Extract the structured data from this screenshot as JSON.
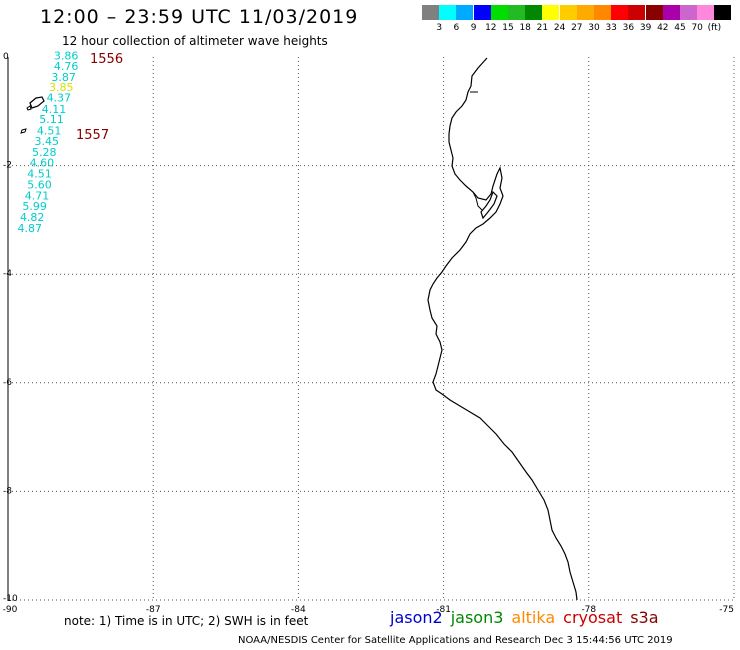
{
  "header": {
    "title": "12:00 – 23:59 UTC 11/03/2019",
    "subtitle": "12 hour collection of altimeter wave heights"
  },
  "color_scale": {
    "colors": [
      "#808080",
      "#00ffff",
      "#00aaff",
      "#0000ff",
      "#00dd00",
      "#22bb22",
      "#008800",
      "#ffff00",
      "#ffcc00",
      "#ffaa00",
      "#ff8800",
      "#ff0000",
      "#cc0000",
      "#880000",
      "#aa00aa",
      "#cc66cc",
      "#ff88dd",
      "#000000"
    ],
    "labels": [
      "3",
      "6",
      "9",
      "12",
      "15",
      "18",
      "21",
      "24",
      "27",
      "30",
      "33",
      "36",
      "39",
      "42",
      "45",
      "70",
      "(ft)"
    ]
  },
  "axes": {
    "x_ticks": [
      "-90",
      "-87",
      "-84",
      "-81",
      "-78",
      "-75"
    ],
    "x_values": [
      -90,
      -87,
      -84,
      -81,
      -78,
      -75
    ],
    "y_ticks": [
      "0",
      "-2",
      "-4",
      "-6",
      "-8",
      "-10"
    ],
    "y_values": [
      0,
      -2,
      -4,
      -6,
      -8,
      -10
    ],
    "xlim": [
      -90,
      -75
    ],
    "ylim": [
      -10,
      0
    ],
    "grid": true
  },
  "track": {
    "time_labels": [
      "1556",
      "1557"
    ],
    "time_label_color": "#880000",
    "values": [
      {
        "text": "3.86",
        "color": "#00cccc",
        "lon": -88.8,
        "lat": -0.05
      },
      {
        "text": "4.76",
        "color": "#00cccc",
        "lon": -88.8,
        "lat": -0.24
      },
      {
        "text": "3.87",
        "color": "#00cccc",
        "lon": -88.85,
        "lat": -0.44
      },
      {
        "text": "3.85",
        "color": "#dddd00",
        "lon": -88.9,
        "lat": -0.63
      },
      {
        "text": "4.37",
        "color": "#00cccc",
        "lon": -88.95,
        "lat": -0.82
      },
      {
        "text": "4.11",
        "color": "#00cccc",
        "lon": -89.05,
        "lat": -1.03
      },
      {
        "text": "5.11",
        "color": "#00cccc",
        "lon": -89.1,
        "lat": -1.22
      },
      {
        "text": "4.51",
        "color": "#00cccc",
        "lon": -89.15,
        "lat": -1.43
      },
      {
        "text": "3.45",
        "color": "#00cccc",
        "lon": -89.2,
        "lat": -1.62
      },
      {
        "text": "5.28",
        "color": "#00cccc",
        "lon": -89.25,
        "lat": -1.82
      },
      {
        "text": "4.60",
        "color": "#00cccc",
        "lon": -89.3,
        "lat": -2.02
      },
      {
        "text": "4.51",
        "color": "#00cccc",
        "lon": -89.35,
        "lat": -2.22
      },
      {
        "text": "5.60",
        "color": "#00cccc",
        "lon": -89.35,
        "lat": -2.42
      },
      {
        "text": "4.71",
        "color": "#00cccc",
        "lon": -89.4,
        "lat": -2.62
      },
      {
        "text": "5.99",
        "color": "#00cccc",
        "lon": -89.45,
        "lat": -2.82
      },
      {
        "text": "4.82",
        "color": "#00cccc",
        "lon": -89.5,
        "lat": -3.02
      },
      {
        "text": "4.87",
        "color": "#00cccc",
        "lon": -89.55,
        "lat": -3.22
      }
    ]
  },
  "footer": {
    "note": "note: 1) Time is in UTC; 2) SWH is in feet",
    "satellites": [
      {
        "name": "jason2",
        "color": "#0000cc"
      },
      {
        "name": "jason3",
        "color": "#008800"
      },
      {
        "name": "altika",
        "color": "#ff8800"
      },
      {
        "name": "cryosat",
        "color": "#cc0000"
      },
      {
        "name": "s3a",
        "color": "#880000"
      }
    ],
    "credit": "NOAA/NESDIS Center for Satellite Applications and Research    Dec  3 15:44:56 UTC 2019"
  }
}
